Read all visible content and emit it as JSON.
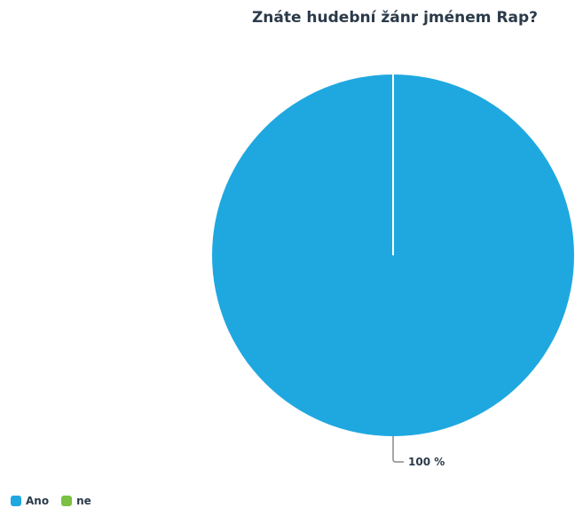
{
  "chart_data": {
    "type": "pie",
    "title": "Znáte hudební žánr jménem Rap?",
    "slices": [
      {
        "label": "Ano",
        "value": 100,
        "color": "#1fa8e0"
      },
      {
        "label": "ne",
        "value": 0,
        "color": "#7ac143"
      }
    ],
    "data_labels": [
      "100 %"
    ],
    "legend": {
      "position": "bottom-left",
      "items": [
        {
          "label": "Ano",
          "color": "#1fa8e0"
        },
        {
          "label": "ne",
          "color": "#7ac143"
        }
      ]
    }
  }
}
